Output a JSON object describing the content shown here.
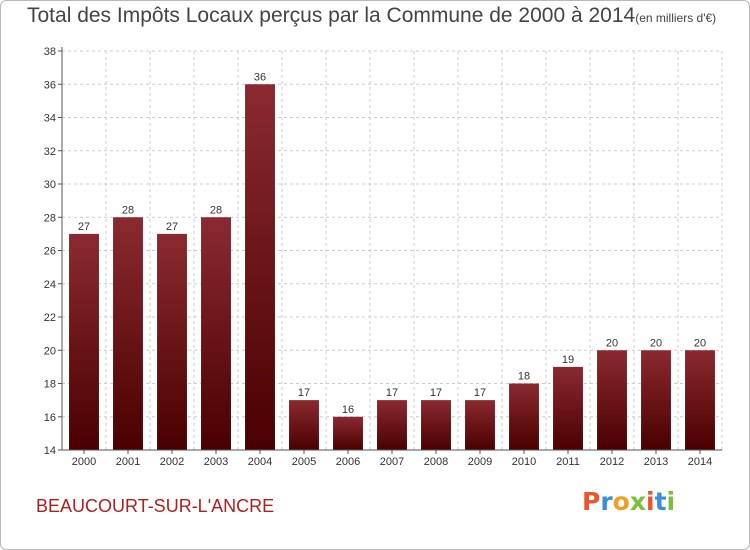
{
  "header": {
    "title": "Total des Impôts Locaux perçus par la Commune de 2000 à 2014",
    "unit": "(en milliers d'€)"
  },
  "footer": {
    "commune": "BEAUCOURT-SUR-L'ANCRE",
    "logo_letters": [
      {
        "char": "P",
        "color": "#e8562a"
      },
      {
        "char": "r",
        "color": "#3b8fd6"
      },
      {
        "char": "o",
        "color": "#f0a020"
      },
      {
        "char": "x",
        "color": "#7bbf3a"
      },
      {
        "char": "i",
        "color": "#e8562a"
      },
      {
        "char": "t",
        "color": "#3b8fd6"
      },
      {
        "char": "i",
        "color": "#7bbf3a"
      }
    ]
  },
  "chart_data": {
    "type": "bar",
    "title": "Total des Impôts Locaux perçus par la Commune de 2000 à 2014",
    "subtitle": "(en milliers d'€)",
    "categories": [
      "2000",
      "2001",
      "2002",
      "2003",
      "2004",
      "2005",
      "2006",
      "2007",
      "2008",
      "2009",
      "2010",
      "2011",
      "2012",
      "2013",
      "2014"
    ],
    "values": [
      27,
      28,
      27,
      28,
      36,
      17,
      16,
      17,
      17,
      17,
      18,
      19,
      20,
      20,
      20
    ],
    "ylim": [
      14,
      38
    ],
    "yticks": [
      14,
      16,
      18,
      20,
      22,
      24,
      26,
      28,
      30,
      32,
      34,
      36,
      38
    ],
    "grid": true,
    "bar_color_top": "#8a2a30",
    "bar_color_bottom": "#4a0000",
    "grid_color": "#cccccc"
  }
}
